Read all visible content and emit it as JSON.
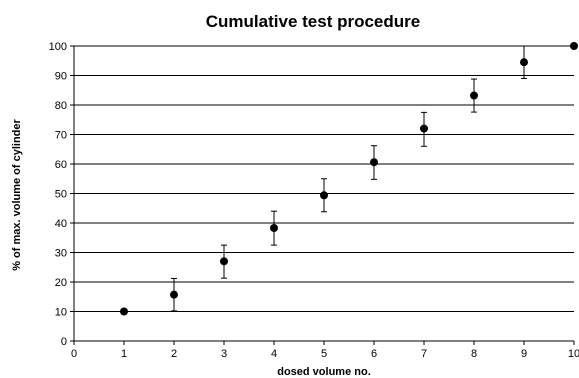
{
  "chart_data": {
    "type": "scatter",
    "title": "Cumulative test procedure",
    "xlabel": "dosed volume no.",
    "ylabel": "% of max. volume of cylinder",
    "xlim": [
      0,
      10
    ],
    "ylim": [
      0,
      100
    ],
    "xticks": [
      0,
      1,
      2,
      3,
      4,
      5,
      6,
      7,
      8,
      9,
      10
    ],
    "yticks": [
      0,
      10,
      20,
      30,
      40,
      50,
      60,
      70,
      80,
      90,
      100
    ],
    "grid": {
      "horizontal": true,
      "vertical": false
    },
    "legend": "none",
    "colors": {
      "marker": "#000000",
      "grid": "#000000",
      "axis": "#000000"
    },
    "series": [
      {
        "x": [
          1,
          2,
          3,
          4,
          5,
          6,
          7,
          8,
          9,
          10
        ],
        "y": [
          10,
          15.7,
          27,
          38.3,
          49.4,
          60.6,
          72,
          83.2,
          94.5,
          100
        ],
        "error_low": [
          0,
          5.5,
          5.7,
          5.8,
          5.6,
          5.8,
          6,
          5.6,
          5.5,
          0
        ],
        "error_high": [
          0,
          5.5,
          5.5,
          5.7,
          5.6,
          5.6,
          5.5,
          5.6,
          5.5,
          0
        ]
      }
    ]
  }
}
